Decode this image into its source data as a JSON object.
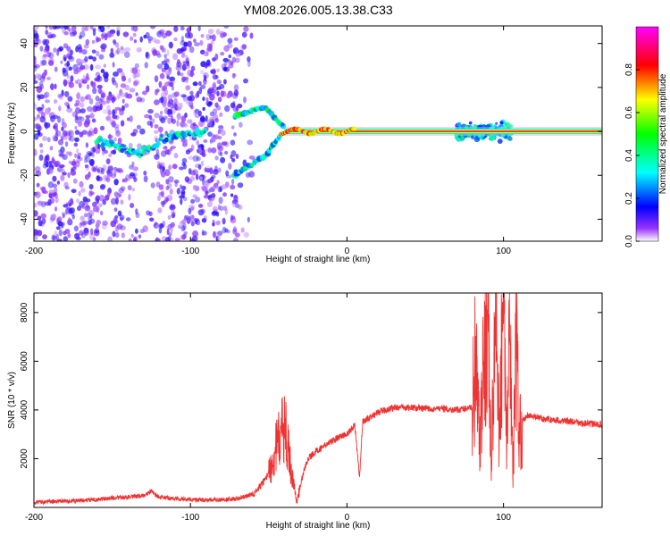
{
  "chart_data": [
    {
      "type": "heatmap",
      "title": "YM08.2026.005.13.38.C33",
      "xlabel": "Height of straight line (km)",
      "ylabel": "Frequency (Hz)",
      "xlim": [
        -200,
        163
      ],
      "ylim": [
        -50,
        48
      ],
      "xticks": [
        -200,
        -100,
        0,
        100
      ],
      "yticks": [
        40,
        20,
        0,
        -20,
        -40
      ],
      "colorbar": {
        "label": "Normalized spectral amplitude",
        "range": [
          0,
          1
        ],
        "ticks": [
          "0.0",
          "0.2",
          "0.4",
          "0.6",
          "0.8"
        ],
        "colors": [
          "#ffffff",
          "#7a00ff",
          "#0000ff",
          "#00ffff",
          "#00ff00",
          "#ffff00",
          "#ff0000",
          "#ff00ff"
        ]
      },
      "features": [
        {
          "name": "noise-scatter",
          "x_range": [
            -200,
            -60
          ],
          "freq_range": [
            -50,
            48
          ],
          "amplitude": 0.15
        },
        {
          "name": "left-trace",
          "points": [
            [
              -160,
              -4
            ],
            [
              -150,
              -6
            ],
            [
              -140,
              -9
            ],
            [
              -132,
              -10
            ],
            [
              -125,
              -8
            ],
            [
              -118,
              -4
            ],
            [
              -110,
              -2
            ],
            [
              -100,
              -1
            ],
            [
              -90,
              0
            ]
          ],
          "amplitude": 0.3
        },
        {
          "name": "upper-branch",
          "points": [
            [
              -72,
              7
            ],
            [
              -65,
              8
            ],
            [
              -58,
              10
            ],
            [
              -52,
              11
            ],
            [
              -48,
              8
            ],
            [
              -44,
              4
            ],
            [
              -40,
              2
            ]
          ],
          "amplitude": 0.35
        },
        {
          "name": "lower-branch",
          "points": [
            [
              -72,
              -20
            ],
            [
              -65,
              -17
            ],
            [
              -58,
              -14
            ],
            [
              -52,
              -11
            ],
            [
              -48,
              -7
            ],
            [
              -44,
              -3
            ],
            [
              -40,
              0
            ]
          ],
          "amplitude": 0.3
        },
        {
          "name": "zero-line",
          "points": [
            [
              -40,
              0
            ],
            [
              163,
              0
            ]
          ],
          "amplitude": 0.9
        },
        {
          "name": "burst-region",
          "x_range": [
            70,
            105
          ],
          "freq_range": [
            -8,
            8
          ],
          "amplitude": 0.3
        }
      ]
    },
    {
      "type": "line",
      "xlabel": "Height of straight line (km)",
      "ylabel": "SNR (10 * v/v)",
      "xlim": [
        -200,
        163
      ],
      "ylim": [
        0,
        8800
      ],
      "xticks": [
        -200,
        -100,
        0,
        100
      ],
      "yticks": [
        2000,
        4000,
        6000,
        8000
      ],
      "color": "#ee3333",
      "series": [
        {
          "name": "SNR",
          "x": [
            -200,
            -190,
            -180,
            -170,
            -160,
            -150,
            -140,
            -130,
            -125,
            -120,
            -110,
            -100,
            -90,
            -80,
            -70,
            -65,
            -60,
            -55,
            -50,
            -45,
            -40,
            -35,
            -32,
            -28,
            -25,
            -20,
            -15,
            -10,
            -5,
            0,
            5,
            8,
            10,
            15,
            20,
            25,
            30,
            40,
            50,
            60,
            70,
            75,
            80,
            82,
            85,
            88,
            90,
            92,
            95,
            97,
            100,
            102,
            104,
            106,
            108,
            110,
            115,
            120,
            130,
            140,
            150,
            163
          ],
          "y": [
            150,
            180,
            200,
            220,
            260,
            330,
            360,
            420,
            600,
            360,
            300,
            260,
            240,
            260,
            300,
            380,
            500,
            900,
            1400,
            2500,
            3400,
            1300,
            200,
            1400,
            2000,
            2300,
            2500,
            2700,
            2900,
            3000,
            3400,
            1200,
            3500,
            3700,
            3900,
            4000,
            4100,
            4100,
            4050,
            4050,
            4000,
            4050,
            4100,
            5900,
            2500,
            6500,
            8300,
            1800,
            7800,
            3200,
            8700,
            2200,
            7600,
            1200,
            6800,
            3300,
            3800,
            3700,
            3600,
            3550,
            3450,
            3400
          ]
        }
      ]
    }
  ]
}
